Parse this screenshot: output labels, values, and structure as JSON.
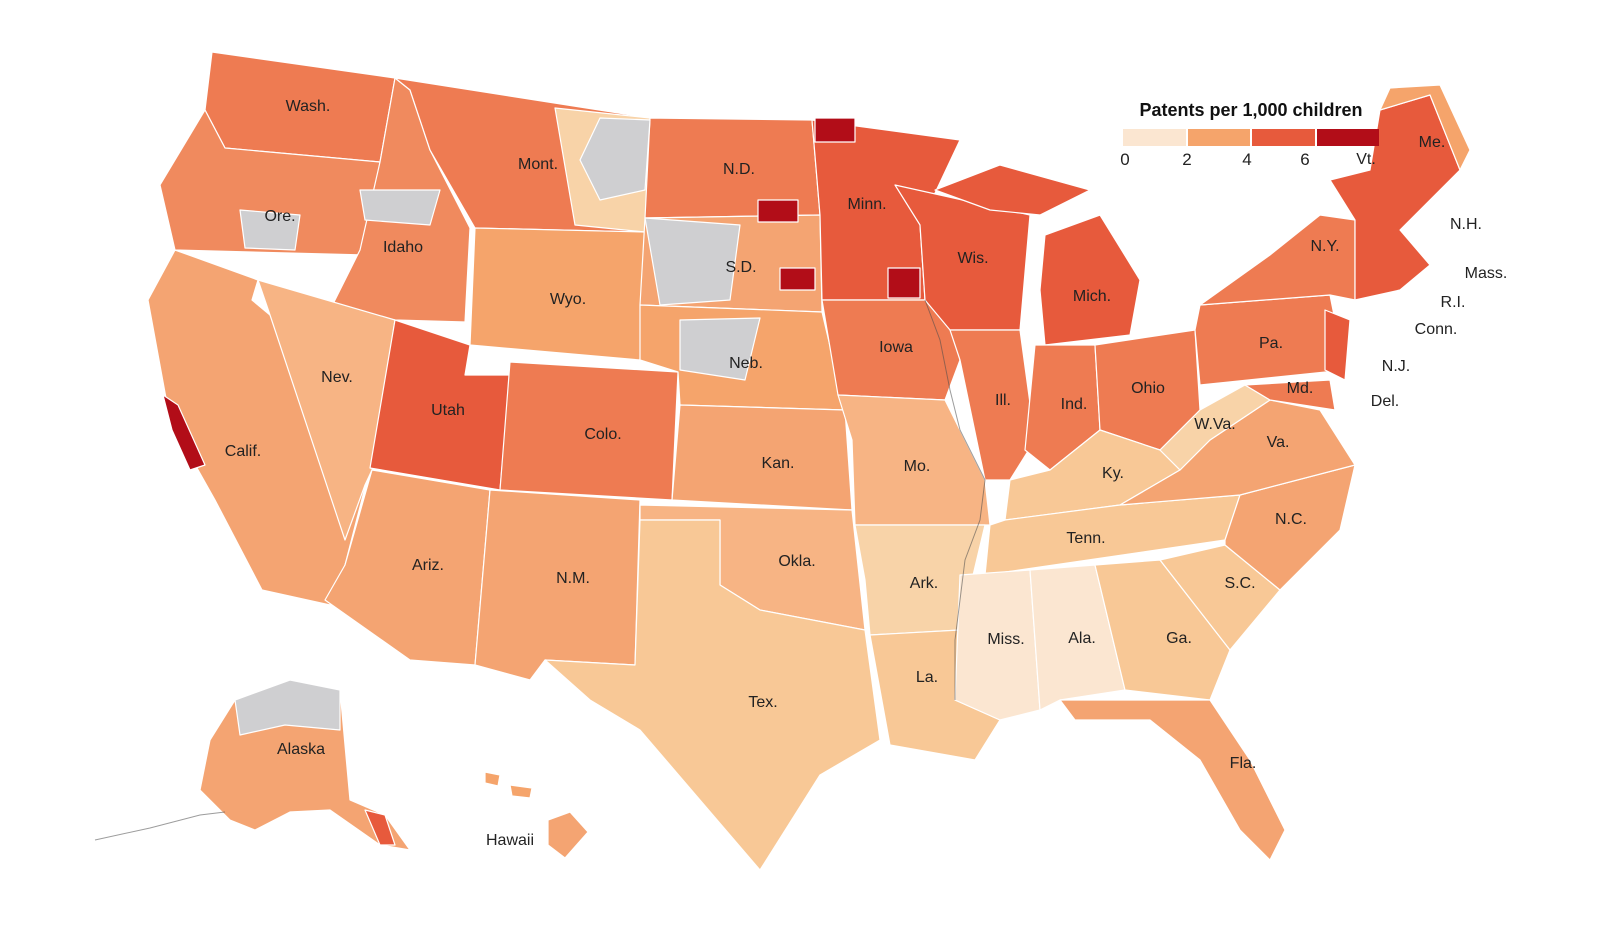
{
  "legend": {
    "title": "Patents per 1,000 children",
    "ticks": [
      "0",
      "2",
      "4",
      "6"
    ],
    "bins": [
      "#fbe6d1",
      "#f5a46b",
      "#e75a3c",
      "#b20d18"
    ],
    "no_data_color": "#cfcfd1"
  },
  "labels": {
    "wash": "Wash.",
    "ore": "Ore.",
    "calif": "Calif.",
    "idaho": "Idaho",
    "nev": "Nev.",
    "mont": "Mont.",
    "wyo": "Wyo.",
    "utah": "Utah",
    "colo": "Colo.",
    "ariz": "Ariz.",
    "nm": "N.M.",
    "nd": "N.D.",
    "sd": "S.D.",
    "neb": "Neb.",
    "kan": "Kan.",
    "okla": "Okla.",
    "tex": "Tex.",
    "minn": "Minn.",
    "iowa": "Iowa",
    "mo": "Mo.",
    "ark": "Ark.",
    "la": "La.",
    "wis": "Wis.",
    "ill": "Ill.",
    "mich": "Mich.",
    "ind": "Ind.",
    "ohio": "Ohio",
    "ky": "Ky.",
    "tenn": "Tenn.",
    "miss": "Miss.",
    "ala": "Ala.",
    "ga": "Ga.",
    "fla": "Fla.",
    "sc": "S.C.",
    "nc": "N.C.",
    "va": "Va.",
    "wva": "W.Va.",
    "pa": "Pa.",
    "ny": "N.Y.",
    "vt": "Vt.",
    "nh": "N.H.",
    "me": "Me.",
    "mass": "Mass.",
    "ri": "R.I.",
    "conn": "Conn.",
    "nj": "N.J.",
    "del": "Del.",
    "md": "Md.",
    "alaska": "Alaska",
    "hawaii": "Hawaii"
  }
}
